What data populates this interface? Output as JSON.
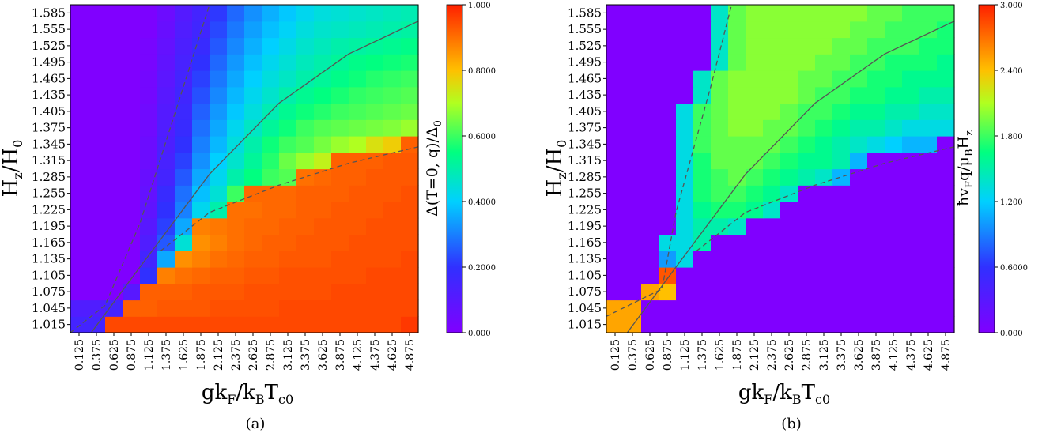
{
  "figure": {
    "panels": [
      {
        "caption": "(a)",
        "xlabel_main": "gk",
        "xlabel_sub1": "F",
        "xlabel_mid": "/k",
        "xlabel_sub2": "B",
        "xlabel_end": "T",
        "xlabel_sub3": "c0",
        "ylabel_main": "H",
        "ylabel_sub1": "z",
        "ylabel_mid": "/H",
        "ylabel_sub2": "0",
        "colorbar_label_a1": "Δ(T=0, q)/Δ",
        "colorbar_label_a2": "0"
      },
      {
        "caption": "(b)",
        "xlabel_main": "gk",
        "xlabel_sub1": "F",
        "xlabel_mid": "/k",
        "xlabel_sub2": "B",
        "xlabel_end": "T",
        "xlabel_sub3": "c0",
        "ylabel_main": "H",
        "ylabel_sub1": "z",
        "ylabel_mid": "/H",
        "ylabel_sub2": "0",
        "colorbar_label_b1": "ħv",
        "colorbar_label_b2": "F",
        "colorbar_label_b3": "q/μ",
        "colorbar_label_b4": "B",
        "colorbar_label_b5": "H",
        "colorbar_label_b6": "z"
      }
    ]
  },
  "chart_data": [
    {
      "type": "heatmap",
      "title": "",
      "caption": "(a)",
      "x_ticks": [
        "0.125",
        "0.375",
        "0.625",
        "0.875",
        "1.125",
        "1.375",
        "1.625",
        "1.875",
        "2.125",
        "2.375",
        "2.625",
        "2.875",
        "3.125",
        "3.375",
        "3.625",
        "3.875",
        "4.125",
        "4.375",
        "4.625",
        "4.875"
      ],
      "y_ticks": [
        "1.015",
        "1.045",
        "1.075",
        "1.105",
        "1.135",
        "1.165",
        "1.195",
        "1.225",
        "1.255",
        "1.285",
        "1.315",
        "1.345",
        "1.375",
        "1.405",
        "1.435",
        "1.465",
        "1.495",
        "1.525",
        "1.555",
        "1.585"
      ],
      "x_range": [
        0.0,
        5.0
      ],
      "y_range": [
        1.0,
        1.6
      ],
      "colorbar_range": [
        0.0,
        1.0
      ],
      "colorbar_ticks": [
        "0.000",
        "0.2000",
        "0.4000",
        "0.6000",
        "0.8000",
        "1.000"
      ],
      "colormap": "rainbow",
      "lines": [
        {
          "style": "dashed",
          "points": [
            [
              0.0,
              1.0
            ],
            [
              0.5,
              1.05
            ],
            [
              1.0,
              1.2
            ],
            [
              1.5,
              1.4
            ],
            [
              2.0,
              1.6
            ]
          ]
        },
        {
          "style": "solid",
          "points": [
            [
              0.3,
              1.0
            ],
            [
              1.0,
              1.12
            ],
            [
              2.0,
              1.29
            ],
            [
              3.0,
              1.42
            ],
            [
              4.0,
              1.51
            ],
            [
              5.0,
              1.57
            ]
          ]
        },
        {
          "style": "dashed",
          "points": [
            [
              1.3,
              1.15
            ],
            [
              2.0,
              1.22
            ],
            [
              3.0,
              1.27
            ],
            [
              4.0,
              1.31
            ],
            [
              5.0,
              1.34
            ]
          ]
        }
      ],
      "cells_note": "values 0-1 per cell, rows listed bottom (1.015) to top (1.585)",
      "values": [
        [
          0.15,
          0.15,
          0.95,
          0.95,
          0.95,
          0.95,
          0.95,
          0.95,
          0.95,
          0.95,
          0.95,
          0.95,
          0.95,
          0.95,
          0.95,
          0.95,
          0.95,
          0.95,
          0.95,
          0.97
        ],
        [
          0.12,
          0.12,
          0.15,
          0.92,
          0.92,
          0.93,
          0.93,
          0.93,
          0.94,
          0.94,
          0.94,
          0.94,
          0.95,
          0.95,
          0.95,
          0.95,
          0.95,
          0.95,
          0.95,
          0.95
        ],
        [
          0.0,
          0.0,
          0.0,
          0.1,
          0.92,
          0.92,
          0.92,
          0.93,
          0.93,
          0.93,
          0.94,
          0.94,
          0.94,
          0.94,
          0.94,
          0.95,
          0.95,
          0.95,
          0.95,
          0.95
        ],
        [
          0.0,
          0.0,
          0.0,
          0.0,
          0.2,
          0.88,
          0.9,
          0.91,
          0.92,
          0.92,
          0.93,
          0.93,
          0.94,
          0.94,
          0.94,
          0.94,
          0.94,
          0.95,
          0.95,
          0.95
        ],
        [
          0.0,
          0.0,
          0.0,
          0.0,
          0.15,
          0.35,
          0.86,
          0.88,
          0.9,
          0.91,
          0.92,
          0.92,
          0.93,
          0.93,
          0.93,
          0.94,
          0.94,
          0.94,
          0.94,
          0.95
        ],
        [
          0.0,
          0.0,
          0.0,
          0.0,
          0.12,
          0.25,
          0.45,
          0.86,
          0.88,
          0.9,
          0.91,
          0.92,
          0.92,
          0.93,
          0.93,
          0.93,
          0.94,
          0.94,
          0.94,
          0.94
        ],
        [
          0.0,
          0.0,
          0.0,
          0.0,
          0.1,
          0.22,
          0.35,
          0.88,
          0.89,
          0.9,
          0.91,
          0.91,
          0.92,
          0.92,
          0.93,
          0.93,
          0.93,
          0.94,
          0.94,
          0.94
        ],
        [
          0.0,
          0.0,
          0.0,
          0.0,
          0.08,
          0.2,
          0.3,
          0.42,
          0.5,
          0.9,
          0.9,
          0.91,
          0.91,
          0.92,
          0.92,
          0.93,
          0.93,
          0.93,
          0.94,
          0.94
        ],
        [
          0.0,
          0.0,
          0.0,
          0.0,
          0.07,
          0.18,
          0.28,
          0.38,
          0.45,
          0.6,
          0.91,
          0.91,
          0.91,
          0.92,
          0.92,
          0.92,
          0.93,
          0.93,
          0.93,
          0.94
        ],
        [
          0.0,
          0.0,
          0.0,
          0.0,
          0.06,
          0.15,
          0.25,
          0.35,
          0.42,
          0.5,
          0.55,
          0.6,
          0.62,
          0.9,
          0.91,
          0.92,
          0.92,
          0.93,
          0.93,
          0.93
        ],
        [
          0.0,
          0.0,
          0.0,
          0.0,
          0.05,
          0.14,
          0.22,
          0.32,
          0.4,
          0.46,
          0.52,
          0.58,
          0.64,
          0.68,
          0.72,
          0.92,
          0.92,
          0.92,
          0.93,
          0.93
        ],
        [
          0.0,
          0.0,
          0.0,
          0.0,
          0.05,
          0.13,
          0.2,
          0.3,
          0.37,
          0.44,
          0.5,
          0.56,
          0.6,
          0.62,
          0.65,
          0.68,
          0.7,
          0.75,
          0.78,
          0.92
        ],
        [
          0.0,
          0.0,
          0.0,
          0.0,
          0.04,
          0.12,
          0.18,
          0.28,
          0.35,
          0.42,
          0.47,
          0.52,
          0.56,
          0.6,
          0.62,
          0.63,
          0.64,
          0.65,
          0.66,
          0.68
        ],
        [
          0.0,
          0.0,
          0.0,
          0.0,
          0.04,
          0.11,
          0.17,
          0.26,
          0.33,
          0.39,
          0.44,
          0.49,
          0.53,
          0.56,
          0.58,
          0.6,
          0.61,
          0.62,
          0.63,
          0.64
        ],
        [
          0.0,
          0.0,
          0.0,
          0.0,
          0.03,
          0.1,
          0.16,
          0.24,
          0.31,
          0.37,
          0.42,
          0.46,
          0.5,
          0.53,
          0.55,
          0.57,
          0.59,
          0.6,
          0.61,
          0.62
        ],
        [
          0.0,
          0.0,
          0.0,
          0.0,
          0.03,
          0.09,
          0.15,
          0.22,
          0.29,
          0.35,
          0.4,
          0.44,
          0.47,
          0.5,
          0.52,
          0.54,
          0.56,
          0.58,
          0.59,
          0.6
        ],
        [
          0.0,
          0.0,
          0.0,
          0.0,
          0.02,
          0.08,
          0.14,
          0.2,
          0.27,
          0.33,
          0.38,
          0.42,
          0.45,
          0.48,
          0.5,
          0.52,
          0.54,
          0.55,
          0.56,
          0.57
        ],
        [
          0.0,
          0.0,
          0.0,
          0.0,
          0.02,
          0.07,
          0.13,
          0.18,
          0.25,
          0.31,
          0.36,
          0.4,
          0.43,
          0.46,
          0.48,
          0.5,
          0.51,
          0.52,
          0.53,
          0.54
        ],
        [
          0.0,
          0.0,
          0.0,
          0.0,
          0.01,
          0.06,
          0.12,
          0.16,
          0.23,
          0.29,
          0.34,
          0.38,
          0.41,
          0.44,
          0.46,
          0.47,
          0.48,
          0.49,
          0.5,
          0.51
        ],
        [
          0.0,
          0.0,
          0.0,
          0.0,
          0.01,
          0.05,
          0.11,
          0.15,
          0.21,
          0.27,
          0.32,
          0.36,
          0.39,
          0.42,
          0.44,
          0.45,
          0.46,
          0.47,
          0.48,
          0.49
        ]
      ]
    },
    {
      "type": "heatmap",
      "title": "",
      "caption": "(b)",
      "x_ticks": [
        "0.125",
        "0.375",
        "0.625",
        "0.875",
        "1.125",
        "1.375",
        "1.625",
        "1.875",
        "2.125",
        "2.375",
        "2.625",
        "2.875",
        "3.125",
        "3.375",
        "3.625",
        "3.875",
        "4.125",
        "4.375",
        "4.625",
        "4.875"
      ],
      "y_ticks": [
        "1.015",
        "1.045",
        "1.075",
        "1.105",
        "1.135",
        "1.165",
        "1.195",
        "1.225",
        "1.255",
        "1.285",
        "1.315",
        "1.345",
        "1.375",
        "1.405",
        "1.435",
        "1.465",
        "1.495",
        "1.525",
        "1.555",
        "1.585"
      ],
      "x_range": [
        0.0,
        5.0
      ],
      "y_range": [
        1.0,
        1.6
      ],
      "colorbar_range": [
        0.0,
        3.0
      ],
      "colorbar_ticks": [
        "0.000",
        "0.6000",
        "1.200",
        "1.800",
        "2.400",
        "3.000"
      ],
      "colormap": "rainbow",
      "lines": [
        {
          "style": "dashed",
          "points": [
            [
              0.0,
              1.03
            ],
            [
              0.8,
              1.08
            ],
            [
              1.0,
              1.22
            ],
            [
              1.5,
              1.45
            ],
            [
              1.8,
              1.6
            ]
          ]
        },
        {
          "style": "solid",
          "points": [
            [
              0.3,
              1.0
            ],
            [
              1.0,
              1.12
            ],
            [
              2.0,
              1.29
            ],
            [
              3.0,
              1.42
            ],
            [
              4.0,
              1.51
            ],
            [
              5.0,
              1.57
            ]
          ]
        },
        {
          "style": "dashed",
          "points": [
            [
              1.3,
              1.15
            ],
            [
              2.0,
              1.22
            ],
            [
              3.0,
              1.27
            ],
            [
              4.0,
              1.31
            ],
            [
              5.0,
              1.34
            ]
          ]
        }
      ],
      "cells_note": "values 0-3 per cell, rows listed bottom (1.015) to top (1.585)",
      "values": [
        [
          2.5,
          2.5,
          0.0,
          0.0,
          0.0,
          0.0,
          0.0,
          0.0,
          0.0,
          0.0,
          0.0,
          0.0,
          0.0,
          0.0,
          0.0,
          0.0,
          0.0,
          0.0,
          0.0,
          0.0
        ],
        [
          2.5,
          2.5,
          0.0,
          0.0,
          0.0,
          0.0,
          0.0,
          0.0,
          0.0,
          0.0,
          0.0,
          0.0,
          0.0,
          0.0,
          0.0,
          0.0,
          0.0,
          0.0,
          0.0,
          0.0
        ],
        [
          0.0,
          0.0,
          2.5,
          2.4,
          0.0,
          0.0,
          0.0,
          0.0,
          0.0,
          0.0,
          0.0,
          0.0,
          0.0,
          0.0,
          0.0,
          0.0,
          0.0,
          0.0,
          0.0,
          0.0
        ],
        [
          0.0,
          0.0,
          0.0,
          2.8,
          0.0,
          0.0,
          0.0,
          0.0,
          0.0,
          0.0,
          0.0,
          0.0,
          0.0,
          0.0,
          0.0,
          0.0,
          0.0,
          0.0,
          0.0,
          0.0
        ],
        [
          0.0,
          0.0,
          0.0,
          1.0,
          1.3,
          0.0,
          0.0,
          0.0,
          0.0,
          0.0,
          0.0,
          0.0,
          0.0,
          0.0,
          0.0,
          0.0,
          0.0,
          0.0,
          0.0,
          0.0
        ],
        [
          0.0,
          0.0,
          0.0,
          1.3,
          1.3,
          1.5,
          0.0,
          0.0,
          0.0,
          0.0,
          0.0,
          0.0,
          0.0,
          0.0,
          0.0,
          0.0,
          0.0,
          0.0,
          0.0,
          0.0
        ],
        [
          0.0,
          0.0,
          0.0,
          0.0,
          1.3,
          1.5,
          1.5,
          1.4,
          0.0,
          0.0,
          0.0,
          0.0,
          0.0,
          0.0,
          0.0,
          0.0,
          0.0,
          0.0,
          0.0,
          0.0
        ],
        [
          0.0,
          0.0,
          0.0,
          0.0,
          1.3,
          1.6,
          1.7,
          1.7,
          1.6,
          1.4,
          0.0,
          0.0,
          0.0,
          0.0,
          0.0,
          0.0,
          0.0,
          0.0,
          0.0,
          0.0
        ],
        [
          0.0,
          0.0,
          0.0,
          0.0,
          1.3,
          1.7,
          1.8,
          1.8,
          1.7,
          1.6,
          1.4,
          0.0,
          0.0,
          0.0,
          0.0,
          0.0,
          0.0,
          0.0,
          0.0,
          0.0
        ],
        [
          0.0,
          0.0,
          0.0,
          0.0,
          1.3,
          1.7,
          1.8,
          1.9,
          1.8,
          1.7,
          1.6,
          1.5,
          1.4,
          1.1,
          0.0,
          0.0,
          0.0,
          0.0,
          0.0,
          0.0
        ],
        [
          0.0,
          0.0,
          0.0,
          0.0,
          1.3,
          1.7,
          1.9,
          1.9,
          1.9,
          1.8,
          1.7,
          1.6,
          1.6,
          1.5,
          1.1,
          0.0,
          0.0,
          0.0,
          0.0,
          0.0
        ],
        [
          0.0,
          0.0,
          0.0,
          0.0,
          1.3,
          1.8,
          1.9,
          1.9,
          1.9,
          1.9,
          1.8,
          1.7,
          1.6,
          1.5,
          1.4,
          1.3,
          1.2,
          1.1,
          1.1,
          0.0
        ],
        [
          0.0,
          0.0,
          0.0,
          0.0,
          1.3,
          1.8,
          1.9,
          2.0,
          2.0,
          1.9,
          1.9,
          1.8,
          1.7,
          1.6,
          1.5,
          1.5,
          1.4,
          1.3,
          1.3,
          1.3
        ],
        [
          0.0,
          0.0,
          0.0,
          0.0,
          1.3,
          1.8,
          1.9,
          2.0,
          2.0,
          2.0,
          1.9,
          1.8,
          1.8,
          1.7,
          1.6,
          1.6,
          1.5,
          1.5,
          1.4,
          1.4
        ],
        [
          0.0,
          0.0,
          0.0,
          0.0,
          0.0,
          1.4,
          1.9,
          2.0,
          2.0,
          2.0,
          2.0,
          1.9,
          1.8,
          1.8,
          1.7,
          1.7,
          1.6,
          1.6,
          1.5,
          1.5
        ],
        [
          0.0,
          0.0,
          0.0,
          0.0,
          0.0,
          1.4,
          1.9,
          2.0,
          2.0,
          2.0,
          2.0,
          1.9,
          1.9,
          1.8,
          1.8,
          1.7,
          1.7,
          1.6,
          1.6,
          1.6
        ],
        [
          0.0,
          0.0,
          0.0,
          0.0,
          0.0,
          0.0,
          1.4,
          1.9,
          2.0,
          2.0,
          2.0,
          2.0,
          1.9,
          1.9,
          1.8,
          1.8,
          1.7,
          1.7,
          1.7,
          1.6
        ],
        [
          0.0,
          0.0,
          0.0,
          0.0,
          0.0,
          0.0,
          1.4,
          1.9,
          2.0,
          2.0,
          2.0,
          2.0,
          2.0,
          1.9,
          1.9,
          1.8,
          1.8,
          1.8,
          1.7,
          1.7
        ],
        [
          0.0,
          0.0,
          0.0,
          0.0,
          0.0,
          0.0,
          1.4,
          1.9,
          2.0,
          2.0,
          2.0,
          2.0,
          2.0,
          2.0,
          1.9,
          1.9,
          1.8,
          1.8,
          1.8,
          1.7
        ],
        [
          0.0,
          0.0,
          0.0,
          0.0,
          0.0,
          0.0,
          1.4,
          1.9,
          2.0,
          2.0,
          2.0,
          2.0,
          2.0,
          2.0,
          2.0,
          1.9,
          1.9,
          1.8,
          1.8,
          1.8
        ]
      ]
    }
  ]
}
